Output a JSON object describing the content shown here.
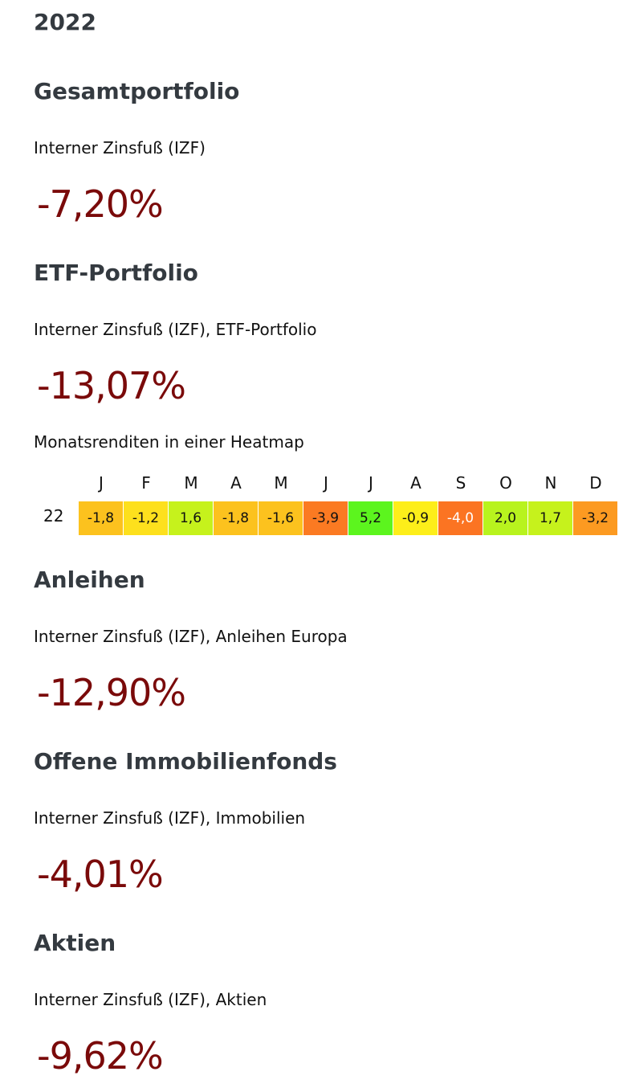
{
  "year": "2022",
  "sections": [
    {
      "title": "Gesamtportfolio",
      "label": "Interner Zinsfuß (IZF)",
      "value": "-7,20%"
    },
    {
      "title": "ETF-Portfolio",
      "label": "Interner Zinsfuß (IZF), ETF-Portfolio",
      "value": "-13,07%"
    },
    {
      "title": "Anleihen",
      "label": "Interner Zinsfuß (IZF), Anleihen Europa",
      "value": "-12,90%"
    },
    {
      "title": "Offene Immobilienfonds",
      "label": "Interner Zinsfuß (IZF), Immobilien",
      "value": "-4,01%"
    },
    {
      "title": "Aktien",
      "label": "Interner Zinsfuß (IZF), Aktien",
      "value": "-9,62%"
    }
  ],
  "heatmap": {
    "title": "Monatsrenditen in einer Heatmap",
    "row_label": "22",
    "months": [
      "J",
      "F",
      "M",
      "A",
      "M",
      "J",
      "J",
      "A",
      "S",
      "O",
      "N",
      "D"
    ],
    "values_display": [
      "-1,8",
      "-1,2",
      "1,6",
      "-1,8",
      "-1,6",
      "-3,9",
      "5,2",
      "-0,9",
      "-4,0",
      "2,0",
      "1,7",
      "-3,2"
    ],
    "cell_colors": [
      "#fcc21e",
      "#fde01d",
      "#c6f21c",
      "#fcc21e",
      "#fcc21e",
      "#fb7a22",
      "#5cf51e",
      "#fdee1a",
      "#fb7422",
      "#b8f31e",
      "#c6f21c",
      "#fc9a21"
    ],
    "text_colors": [
      "#111111",
      "#111111",
      "#111111",
      "#111111",
      "#111111",
      "#111111",
      "#111111",
      "#111111",
      "#ffffff",
      "#111111",
      "#111111",
      "#111111"
    ]
  },
  "chart_data": {
    "type": "heatmap",
    "title": "Monatsrenditen in einer Heatmap",
    "x": [
      "J",
      "F",
      "M",
      "A",
      "M",
      "J",
      "J",
      "A",
      "S",
      "O",
      "N",
      "D"
    ],
    "y": [
      "22"
    ],
    "values": [
      [
        -1.8,
        -1.2,
        1.6,
        -1.8,
        -1.6,
        -3.9,
        5.2,
        -0.9,
        -4.0,
        2.0,
        1.7,
        -3.2
      ]
    ]
  }
}
